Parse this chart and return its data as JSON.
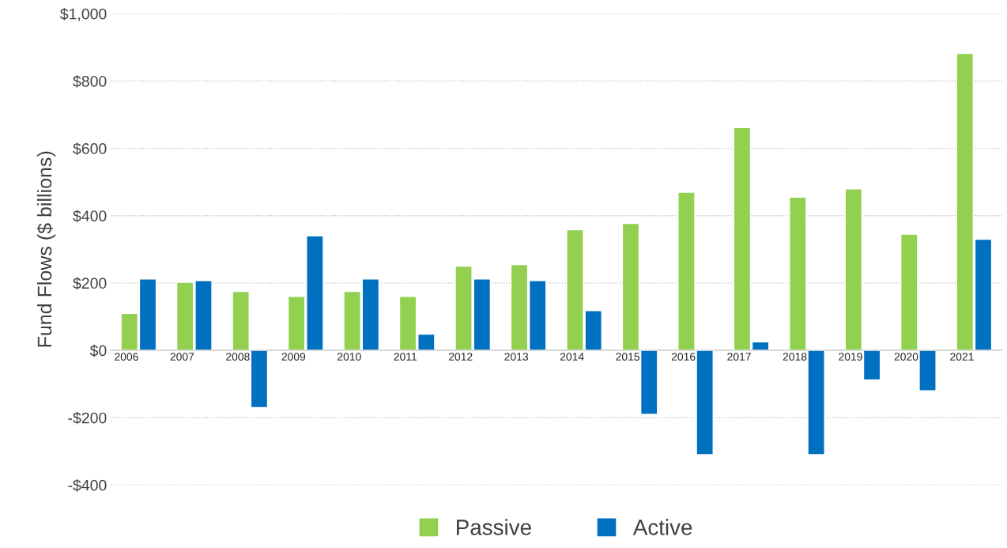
{
  "chart_data": {
    "type": "bar",
    "categories": [
      "2006",
      "2007",
      "2008",
      "2009",
      "2010",
      "2011",
      "2012",
      "2013",
      "2014",
      "2015",
      "2016",
      "2017",
      "2018",
      "2019",
      "2020",
      "2021"
    ],
    "series": [
      {
        "name": "Passive",
        "color": "#92d050",
        "values": [
          110,
          202,
          175,
          160,
          175,
          160,
          250,
          255,
          358,
          377,
          470,
          662,
          455,
          480,
          345,
          882
        ]
      },
      {
        "name": "Active",
        "color": "#0070c0",
        "values": [
          212,
          207,
          -170,
          340,
          212,
          48,
          212,
          207,
          118,
          -190,
          -310,
          25,
          -310,
          -88,
          -120,
          330
        ]
      }
    ],
    "ylabel": "Fund Flows ($ billions)",
    "ylim": [
      -400,
      1000
    ],
    "yticks": [
      {
        "value": -400,
        "label": "-$400"
      },
      {
        "value": -200,
        "label": "-$200"
      },
      {
        "value": 0,
        "label": "$0"
      },
      {
        "value": 200,
        "label": "$200"
      },
      {
        "value": 400,
        "label": "$400"
      },
      {
        "value": 600,
        "label": "$600"
      },
      {
        "value": 800,
        "label": "$800"
      },
      {
        "value": 1000,
        "label": "$1,000"
      }
    ],
    "grid": "y",
    "legend": "bottom"
  }
}
